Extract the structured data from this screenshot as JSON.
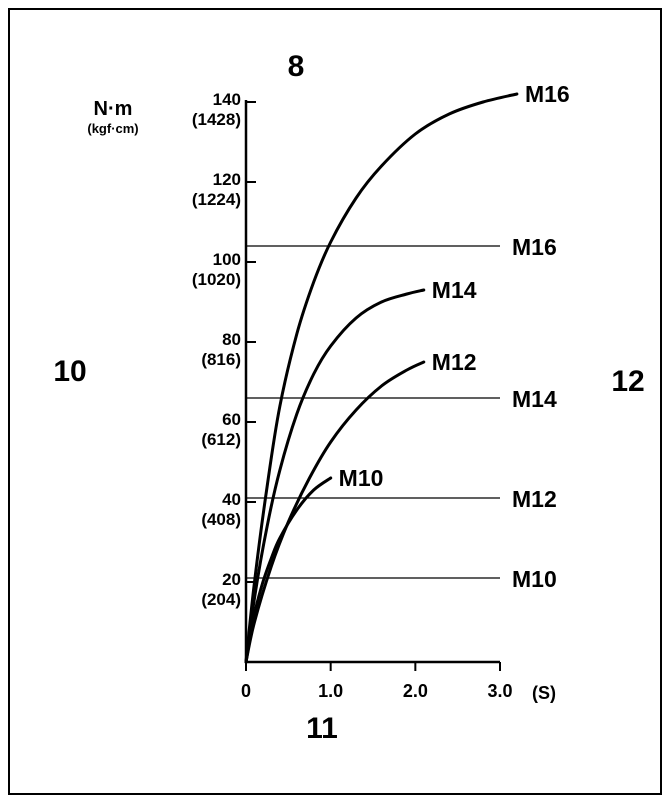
{
  "callouts": {
    "top": "8",
    "left": "10",
    "right": "12",
    "bottom": "11"
  },
  "chart_data": {
    "type": "line",
    "ylabel": "N·m",
    "ylabel_secondary": "(kgf·cm)",
    "xunit": "(S)",
    "xlim": [
      0,
      3.0
    ],
    "ylim": [
      0,
      140
    ],
    "x_ticks": [
      "0",
      "1.0",
      "2.0",
      "3.0"
    ],
    "x_tick_values": [
      0,
      1.0,
      2.0,
      3.0
    ],
    "y_ticks": [
      {
        "value": 20,
        "label": "20",
        "sub": "(204)"
      },
      {
        "value": 40,
        "label": "40",
        "sub": "(408)"
      },
      {
        "value": 60,
        "label": "60",
        "sub": "(612)"
      },
      {
        "value": 80,
        "label": "80",
        "sub": "(816)"
      },
      {
        "value": 100,
        "label": "100",
        "sub": "(1020)"
      },
      {
        "value": 120,
        "label": "120",
        "sub": "(1224)"
      },
      {
        "value": 140,
        "label": "140",
        "sub": "(1428)"
      }
    ],
    "curves": [
      {
        "name": "M10",
        "x": [
          0,
          0.1,
          0.2,
          0.3,
          0.4,
          0.6,
          0.8,
          1.0
        ],
        "y": [
          0,
          12,
          20,
          26,
          31,
          38,
          43,
          46
        ]
      },
      {
        "name": "M12",
        "x": [
          0,
          0.1,
          0.3,
          0.5,
          0.75,
          1.0,
          1.3,
          1.6,
          1.9,
          2.1
        ],
        "y": [
          0,
          10,
          24,
          35,
          46,
          55,
          63,
          69,
          73,
          75
        ]
      },
      {
        "name": "M14",
        "x": [
          0,
          0.1,
          0.25,
          0.4,
          0.6,
          0.8,
          1.0,
          1.3,
          1.6,
          1.9,
          2.1
        ],
        "y": [
          0,
          16,
          34,
          48,
          62,
          72,
          79,
          86,
          90,
          92,
          93
        ]
      },
      {
        "name": "M16",
        "x": [
          0,
          0.1,
          0.25,
          0.4,
          0.6,
          0.8,
          1.0,
          1.3,
          1.6,
          2.0,
          2.4,
          2.8,
          3.2
        ],
        "y": [
          0,
          20,
          44,
          64,
          82,
          95,
          105,
          116,
          124,
          132,
          137,
          140,
          142
        ]
      }
    ],
    "reference_lines": [
      {
        "name": "M16",
        "y": 104
      },
      {
        "name": "M14",
        "y": 66
      },
      {
        "name": "M12",
        "y": 41
      },
      {
        "name": "M10",
        "y": 21
      }
    ]
  }
}
